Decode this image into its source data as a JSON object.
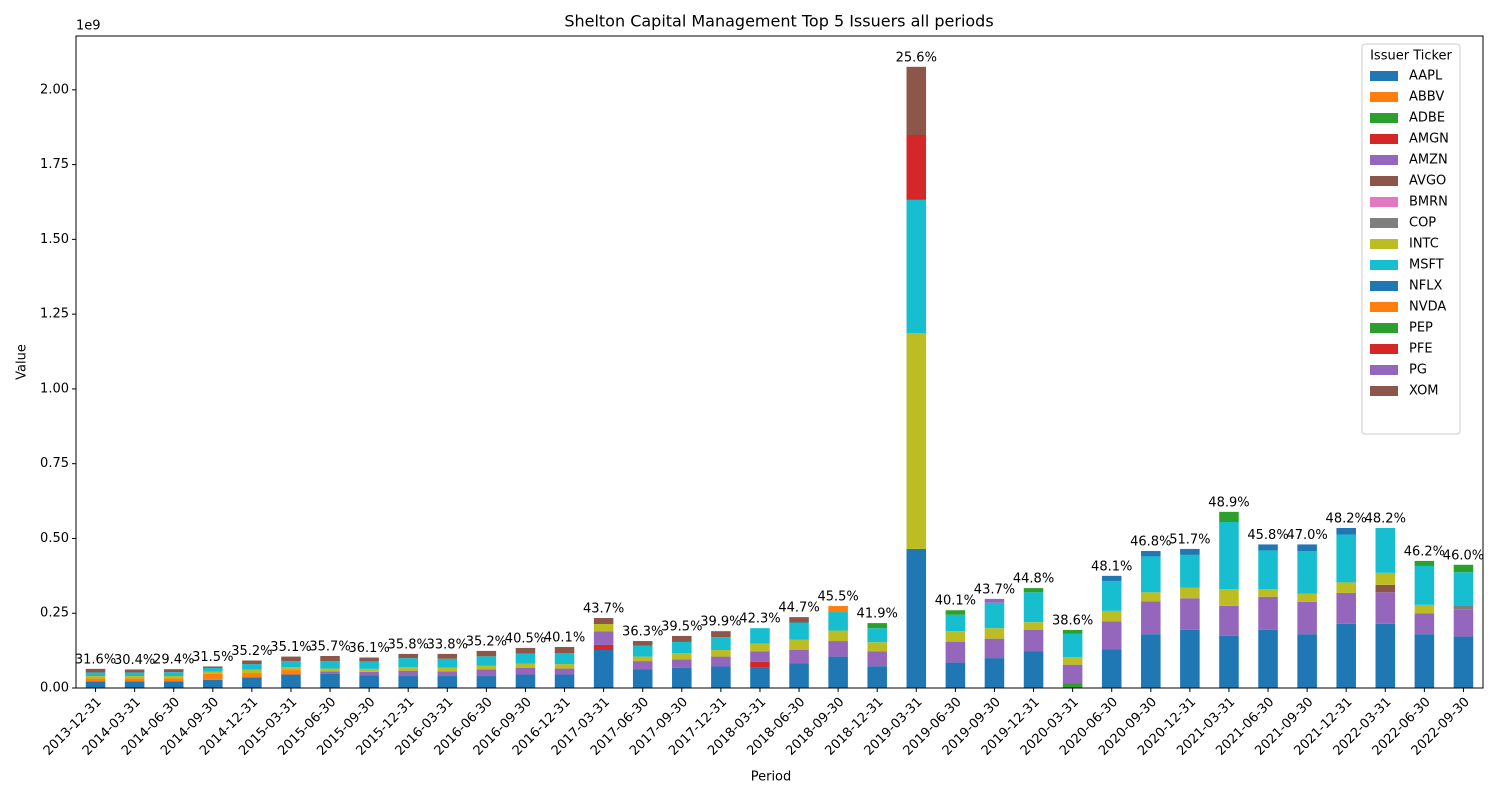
{
  "chart_data": {
    "type": "stacked_bar",
    "title": "Shelton Capital Management Top 5 Issuers all periods",
    "x_label": "Period",
    "y_label": "Value",
    "y_offset_label": "1e9",
    "legend_title": "Issuer Ticker",
    "legend_position": "upper right",
    "categories": [
      "2013-12-31",
      "2014-03-31",
      "2014-06-30",
      "2014-09-30",
      "2014-12-31",
      "2015-03-31",
      "2015-06-30",
      "2015-09-30",
      "2015-12-31",
      "2016-03-31",
      "2016-06-30",
      "2016-09-30",
      "2016-12-31",
      "2017-03-31",
      "2017-06-30",
      "2017-09-30",
      "2017-12-31",
      "2018-03-31",
      "2018-06-30",
      "2018-09-30",
      "2018-12-31",
      "2019-03-31",
      "2019-06-30",
      "2019-09-30",
      "2019-12-31",
      "2020-03-31",
      "2020-06-30",
      "2020-09-30",
      "2020-12-31",
      "2021-03-31",
      "2021-06-30",
      "2021-09-30",
      "2021-12-31",
      "2022-03-31",
      "2022-06-30",
      "2022-09-30"
    ],
    "annotations": [
      "31.6%",
      "30.4%",
      "29.4%",
      "31.5%",
      "35.2%",
      "35.1%",
      "35.7%",
      "36.1%",
      "35.8%",
      "33.8%",
      "35.2%",
      "40.5%",
      "40.1%",
      "43.7%",
      "36.3%",
      "39.5%",
      "39.9%",
      "42.3%",
      "44.7%",
      "45.5%",
      "41.9%",
      "25.6%",
      "40.1%",
      "43.7%",
      "44.8%",
      "38.6%",
      "48.1%",
      "46.8%",
      "51.7%",
      "48.9%",
      "45.8%",
      "47.0%",
      "48.2%",
      "48.2%",
      "46.2%",
      "46.0%"
    ],
    "ylim": [
      0,
      2.18
    ],
    "yticks": [
      {
        "value": 0,
        "label": "0.00"
      },
      {
        "value": 0.25,
        "label": "0.25"
      },
      {
        "value": 0.5,
        "label": "0.50"
      },
      {
        "value": 0.75,
        "label": "0.75"
      },
      {
        "value": 1,
        "label": "1.00"
      },
      {
        "value": 1.25,
        "label": "1.25"
      },
      {
        "value": 1.5,
        "label": "1.50"
      },
      {
        "value": 1.75,
        "label": "1.75"
      },
      {
        "value": 2,
        "label": "2.00"
      }
    ],
    "series": [
      {
        "name": "AAPL",
        "color": "#1f77b4",
        "values": [
          0.022,
          0.022,
          0.022,
          0.027,
          0.035,
          0.045,
          0.047,
          0.042,
          0.04,
          0.04,
          0.04,
          0.045,
          0.045,
          0.127,
          0.062,
          0.068,
          0.072,
          0.07,
          0.082,
          0.105,
          0.073,
          0.465,
          0.085,
          0.1,
          0.122,
          0,
          0.13,
          0.18,
          0.195,
          0.175,
          0.195,
          0.18,
          0.215,
          0.215,
          0.18,
          0.172
        ]
      },
      {
        "name": "ABBV",
        "color": "#ff7f0e",
        "values": [
          0.01,
          0.01,
          0.01,
          0.02,
          0.015,
          0.015,
          0,
          0,
          0,
          0,
          0,
          0,
          0,
          0,
          0,
          0,
          0,
          0,
          0,
          0,
          0,
          0,
          0,
          0,
          0,
          0,
          0,
          0,
          0,
          0,
          0,
          0,
          0,
          0,
          0,
          0
        ]
      },
      {
        "name": "ADBE",
        "color": "#2ca02c",
        "values": [
          0,
          0,
          0,
          0,
          0,
          0,
          0,
          0,
          0,
          0,
          0,
          0,
          0,
          0,
          0,
          0,
          0,
          0,
          0,
          0,
          0,
          0,
          0,
          0,
          0,
          0.015,
          0,
          0,
          0,
          0,
          0,
          0,
          0,
          0,
          0,
          0
        ]
      },
      {
        "name": "AMGN",
        "color": "#d62728",
        "values": [
          0,
          0,
          0,
          0,
          0,
          0,
          0,
          0,
          0,
          0,
          0,
          0,
          0,
          0.017,
          0,
          0,
          0,
          0.018,
          0,
          0,
          0,
          0,
          0,
          0,
          0,
          0,
          0,
          0,
          0,
          0,
          0,
          0,
          0,
          0,
          0,
          0
        ]
      },
      {
        "name": "AMZN",
        "color": "#9467bd",
        "values": [
          0,
          0,
          0,
          0,
          0,
          0,
          0.008,
          0.012,
          0.018,
          0.016,
          0.022,
          0.022,
          0.02,
          0.045,
          0.028,
          0.028,
          0.033,
          0.035,
          0.045,
          0.052,
          0.05,
          0,
          0.07,
          0.065,
          0.073,
          0.063,
          0.093,
          0.11,
          0.105,
          0.1,
          0.11,
          0.108,
          0.103,
          0.105,
          0.07,
          0.09
        ]
      },
      {
        "name": "AVGO",
        "color": "#8c564b",
        "values": [
          0,
          0,
          0,
          0,
          0,
          0,
          0,
          0,
          0,
          0,
          0,
          0,
          0,
          0,
          0,
          0,
          0,
          0,
          0,
          0,
          0,
          0,
          0,
          0,
          0,
          0,
          0,
          0,
          0,
          0,
          0,
          0,
          0,
          0.025,
          0,
          0
        ]
      },
      {
        "name": "BMRN",
        "color": "#e377c2",
        "values": [
          0,
          0,
          0,
          0,
          0,
          0,
          0,
          0,
          0,
          0,
          0,
          0,
          0,
          0,
          0,
          0,
          0,
          0,
          0,
          0,
          0,
          0,
          0,
          0,
          0,
          0,
          0,
          0,
          0,
          0,
          0,
          0,
          0,
          0,
          0,
          0
        ]
      },
      {
        "name": "COP",
        "color": "#7f7f7f",
        "values": [
          0,
          0,
          0,
          0,
          0,
          0,
          0,
          0,
          0,
          0,
          0,
          0,
          0,
          0,
          0,
          0,
          0,
          0,
          0,
          0,
          0,
          0,
          0,
          0,
          0,
          0,
          0,
          0,
          0,
          0,
          0,
          0,
          0,
          0,
          0,
          0.015
        ]
      },
      {
        "name": "INTC",
        "color": "#bcbd22",
        "values": [
          0.008,
          0.008,
          0.008,
          0.008,
          0.012,
          0.01,
          0.01,
          0.01,
          0.012,
          0.012,
          0.012,
          0.015,
          0.015,
          0.025,
          0.015,
          0.02,
          0.022,
          0.025,
          0.035,
          0.035,
          0.03,
          0.722,
          0.035,
          0.035,
          0.025,
          0.025,
          0.035,
          0.03,
          0.035,
          0.055,
          0.025,
          0.027,
          0.035,
          0.04,
          0.028,
          0
        ]
      },
      {
        "name": "MSFT",
        "color": "#17becf",
        "values": [
          0.012,
          0.012,
          0.013,
          0.012,
          0.018,
          0.02,
          0.025,
          0.025,
          0.03,
          0.03,
          0.032,
          0.033,
          0.037,
          0,
          0.037,
          0.038,
          0.043,
          0.052,
          0.057,
          0.062,
          0.047,
          0.445,
          0.055,
          0.085,
          0.1,
          0.078,
          0.1,
          0.12,
          0.11,
          0.225,
          0.13,
          0.143,
          0.16,
          0.15,
          0.13,
          0.11
        ]
      },
      {
        "name": "NFLX",
        "color": "#1f77b4",
        "values": [
          0,
          0,
          0,
          0,
          0,
          0,
          0,
          0,
          0,
          0,
          0,
          0,
          0,
          0,
          0,
          0,
          0,
          0,
          0,
          0,
          0,
          0,
          0,
          0,
          0,
          0,
          0.017,
          0.018,
          0.02,
          0,
          0.02,
          0.022,
          0.022,
          0,
          0,
          0
        ]
      },
      {
        "name": "NVDA",
        "color": "#ff7f0e",
        "values": [
          0,
          0,
          0,
          0,
          0,
          0,
          0,
          0,
          0,
          0,
          0,
          0,
          0,
          0,
          0,
          0,
          0,
          0,
          0,
          0.02,
          0,
          0,
          0,
          0,
          0,
          0,
          0,
          0,
          0,
          0,
          0,
          0,
          0,
          0,
          0,
          0
        ]
      },
      {
        "name": "PEP",
        "color": "#2ca02c",
        "values": [
          0,
          0,
          0,
          0,
          0,
          0,
          0,
          0,
          0,
          0,
          0,
          0,
          0,
          0,
          0,
          0,
          0,
          0,
          0,
          0,
          0.017,
          0,
          0.015,
          0,
          0.014,
          0.013,
          0,
          0,
          0,
          0.034,
          0,
          0,
          0,
          0,
          0.017,
          0.025
        ]
      },
      {
        "name": "PFE",
        "color": "#d62728",
        "values": [
          0,
          0,
          0,
          0,
          0,
          0,
          0,
          0,
          0,
          0,
          0,
          0,
          0,
          0,
          0,
          0,
          0,
          0,
          0,
          0,
          0,
          0.217,
          0,
          0,
          0,
          0,
          0,
          0,
          0,
          0,
          0,
          0,
          0,
          0,
          0,
          0
        ]
      },
      {
        "name": "PG",
        "color": "#9467bd",
        "values": [
          0,
          0,
          0,
          0,
          0,
          0,
          0,
          0,
          0,
          0,
          0,
          0,
          0,
          0,
          0,
          0,
          0,
          0,
          0,
          0,
          0,
          0,
          0,
          0.013,
          0,
          0,
          0,
          0,
          0,
          0,
          0,
          0,
          0,
          0,
          0,
          0
        ]
      },
      {
        "name": "XOM",
        "color": "#8c564b",
        "values": [
          0.012,
          0.01,
          0.01,
          0.005,
          0.012,
          0.015,
          0.017,
          0.013,
          0.014,
          0.016,
          0.018,
          0.019,
          0.02,
          0.02,
          0.015,
          0.02,
          0.02,
          0,
          0.018,
          0,
          0,
          0.228,
          0,
          0,
          0,
          0,
          0,
          0,
          0,
          0,
          0,
          0,
          0,
          0,
          0,
          0
        ]
      }
    ]
  }
}
